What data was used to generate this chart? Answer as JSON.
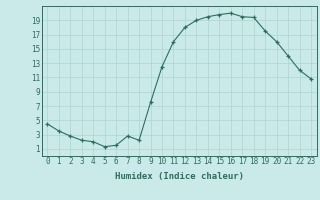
{
  "x": [
    0,
    1,
    2,
    3,
    4,
    5,
    6,
    7,
    8,
    9,
    10,
    11,
    12,
    13,
    14,
    15,
    16,
    17,
    18,
    19,
    20,
    21,
    22,
    23
  ],
  "y": [
    4.5,
    3.5,
    2.8,
    2.2,
    2.0,
    1.3,
    1.5,
    2.8,
    2.2,
    7.5,
    12.5,
    16.0,
    18.0,
    19.0,
    19.5,
    19.8,
    20.0,
    19.5,
    19.4,
    17.5,
    16.0,
    14.0,
    12.0,
    10.8
  ],
  "xlabel": "Humidex (Indice chaleur)",
  "line_color": "#2e6e5e",
  "marker": "+",
  "marker_color": "#2e6e5e",
  "bg_color": "#caeaea",
  "grid_color": "#aed4d0",
  "tick_color": "#2e6e5e",
  "spine_color": "#2e6e5e",
  "ylim": [
    0,
    21
  ],
  "xlim": [
    -0.5,
    23.5
  ],
  "yticks": [
    1,
    3,
    5,
    7,
    9,
    11,
    13,
    15,
    17,
    19
  ],
  "xticks": [
    0,
    1,
    2,
    3,
    4,
    5,
    6,
    7,
    8,
    9,
    10,
    11,
    12,
    13,
    14,
    15,
    16,
    17,
    18,
    19,
    20,
    21,
    22,
    23
  ],
  "tick_fontsize": 5.5,
  "xlabel_fontsize": 6.5
}
